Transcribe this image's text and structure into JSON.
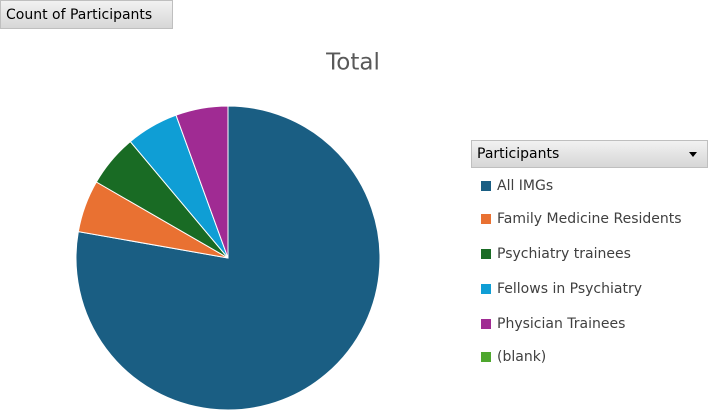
{
  "field_button": "Count of Participants",
  "legend_header": "Participants",
  "chart_data": {
    "type": "pie",
    "title": "Total",
    "categories": [
      "All IMGs",
      "Family Medicine Residents",
      "Psychiatry trainees",
      "Fellows in Psychiatry",
      "Physician Trainees",
      "(blank)"
    ],
    "values": [
      14,
      1,
      1,
      1,
      1,
      null
    ],
    "colors": [
      "#1a5e83",
      "#e97132",
      "#196b24",
      "#0f9ed5",
      "#a02b93",
      "#4ea72e"
    ]
  }
}
